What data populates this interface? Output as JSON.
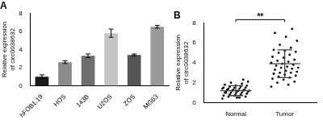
{
  "chart_data": [
    {
      "type": "bar",
      "title": "A",
      "categories": [
        "hFOB1.19",
        "HOS",
        "143B",
        "U2OS",
        "ZOS",
        "MG63"
      ],
      "values": [
        1.0,
        2.6,
        3.3,
        5.8,
        3.4,
        6.5
      ],
      "errors": [
        0.2,
        0.15,
        0.2,
        0.45,
        0.1,
        0.15
      ],
      "colors": [
        "#1a1a1a",
        "#8c8c8c",
        "#6e6e6e",
        "#c4c4c4",
        "#555555",
        "#999999"
      ],
      "ylabel": [
        "Relative expression",
        "of circ0038632"
      ],
      "ylim": [
        0,
        8
      ],
      "yticks": [
        0,
        2,
        4,
        6,
        8
      ],
      "grid": false
    },
    {
      "type": "dot",
      "title": "B",
      "categories": [
        "Normal",
        "Tumor"
      ],
      "values": [
        [
          0.4,
          0.5,
          0.6,
          0.6,
          0.7,
          0.7,
          0.8,
          0.8,
          0.9,
          0.9,
          1.0,
          1.0,
          1.0,
          1.1,
          1.1,
          1.1,
          1.2,
          1.2,
          1.2,
          1.2,
          1.3,
          1.3,
          1.3,
          1.4,
          1.4,
          1.4,
          1.5,
          1.5,
          1.5,
          1.6,
          1.6,
          1.7,
          1.7,
          1.8,
          1.9,
          2.0,
          2.1,
          0.5,
          1.0,
          2.3
        ],
        [
          1.6,
          1.8,
          2.0,
          2.1,
          2.3,
          2.4,
          2.5,
          2.6,
          2.7,
          2.8,
          2.9,
          3.0,
          3.0,
          3.1,
          3.2,
          3.3,
          3.4,
          3.5,
          3.5,
          3.6,
          3.7,
          3.8,
          3.9,
          4.0,
          4.1,
          4.2,
          4.3,
          4.5,
          4.6,
          4.8,
          5.0,
          5.1,
          5.2,
          5.3,
          5.5,
          5.8,
          6.2,
          6.6,
          7.0,
          7.4
        ]
      ],
      "mean": [
        1.2,
        3.9
      ],
      "sd": [
        0.5,
        1.4
      ],
      "color": "#000000",
      "ylabel": [
        "Relative expression",
        "of circ0038632"
      ],
      "ylim": [
        0,
        8
      ],
      "yticks": [
        0,
        2,
        4,
        6,
        8
      ],
      "grid": false,
      "annotations": [
        {
          "text": "**",
          "from": "Normal",
          "to": "Tumor"
        }
      ]
    }
  ]
}
